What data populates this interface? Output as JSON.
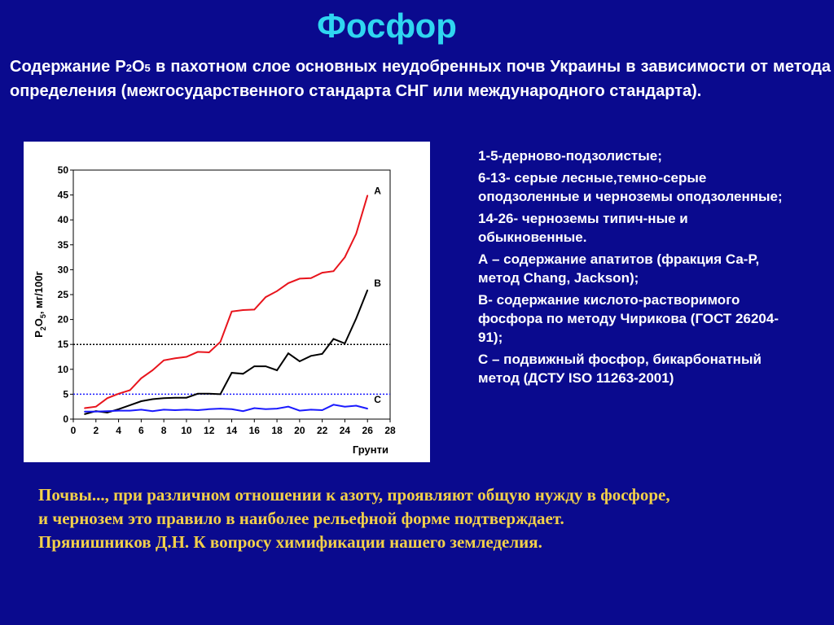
{
  "title": "Фосфор",
  "intro": {
    "part1": "Содержание P",
    "sub1": "2",
    "part2": "O",
    "sub2": "5",
    "part3": " в пахотном слое основных неудобренных почв Украины в зависимости от метода определения (межгосударственного стандарта СНГ или международного стандарта)."
  },
  "legend": [
    "1-5-дерново-подзолистые;",
    "6-13- серые лесные,темно-серые оподзоленные и черноземы оподзоленные;",
    "14-26- черноземы типич-ные и обыкновенные.",
    "А – содержание апатитов (фракция Са-Р, метод  Chang, Jackson);",
    "В- содержание кислото-растворимого фосфора по методу Чирикова (ГОСТ 26204-91);",
    "С – подвижный фосфор, бикарбонатный метод (ДСТУ ISO 11263-2001)"
  ],
  "quote": [
    "Почвы..., при  различном отношении к азоту, проявляют общую нужду в фосфоре,",
    "и чернозем это правило  в наиболее рельефной форме  подтверждает.",
    "Прянишников Д.Н. К вопросу химификации нашего земледелия."
  ],
  "chart_data": {
    "type": "line",
    "xlabel": "Грунти",
    "ylabel_parts": [
      "P",
      "2",
      "O",
      "5",
      ", мг/100г"
    ],
    "xlim": [
      0,
      28
    ],
    "ylim": [
      0,
      50
    ],
    "xticks": [
      0,
      2,
      4,
      6,
      8,
      10,
      12,
      14,
      16,
      18,
      20,
      22,
      24,
      26,
      28
    ],
    "yticks": [
      0,
      5,
      10,
      15,
      20,
      25,
      30,
      35,
      40,
      45,
      50
    ],
    "grid": false,
    "reference_lines": [
      {
        "y": 15,
        "color": "#000000",
        "style": "dotted"
      },
      {
        "y": 5,
        "color": "#1a1aff",
        "style": "dotted"
      }
    ],
    "series": [
      {
        "name": "A",
        "color": "#e8141c",
        "x": [
          1,
          2,
          3,
          4,
          5,
          6,
          7,
          8,
          9,
          10,
          11,
          12,
          13,
          14,
          15,
          16,
          17,
          18,
          19,
          20,
          21,
          22,
          23,
          24,
          25,
          26
        ],
        "values": [
          2.2,
          2.5,
          4.2,
          5.1,
          5.8,
          8.2,
          9.8,
          11.8,
          12.2,
          12.5,
          13.5,
          13.4,
          15.5,
          21.6,
          21.9,
          22.0,
          24.5,
          25.7,
          27.3,
          28.2,
          28.3,
          29.4,
          29.7,
          32.5,
          37.2,
          44.9
        ]
      },
      {
        "name": "B",
        "color": "#000000",
        "x": [
          1,
          2,
          3,
          4,
          5,
          6,
          7,
          8,
          9,
          10,
          11,
          12,
          13,
          14,
          15,
          16,
          17,
          18,
          19,
          20,
          21,
          22,
          23,
          24,
          25,
          26
        ],
        "values": [
          1.0,
          1.6,
          1.3,
          2.0,
          2.8,
          3.6,
          4.0,
          4.2,
          4.3,
          4.3,
          5.1,
          5.1,
          5.0,
          9.3,
          9.1,
          10.6,
          10.6,
          9.8,
          13.2,
          11.6,
          12.7,
          13.1,
          16.1,
          15.2,
          20.2,
          25.9
        ]
      },
      {
        "name": "C",
        "color": "#1a1aff",
        "x": [
          1,
          2,
          3,
          4,
          5,
          6,
          7,
          8,
          9,
          10,
          11,
          12,
          13,
          14,
          15,
          16,
          17,
          18,
          19,
          20,
          21,
          22,
          23,
          24,
          25,
          26
        ],
        "values": [
          1.5,
          1.5,
          1.6,
          1.7,
          1.7,
          1.9,
          1.6,
          1.9,
          1.8,
          1.9,
          1.8,
          2.0,
          2.1,
          2.0,
          1.6,
          2.2,
          2.0,
          2.1,
          2.5,
          1.7,
          1.9,
          1.8,
          2.9,
          2.5,
          2.7,
          2.1
        ]
      }
    ]
  }
}
